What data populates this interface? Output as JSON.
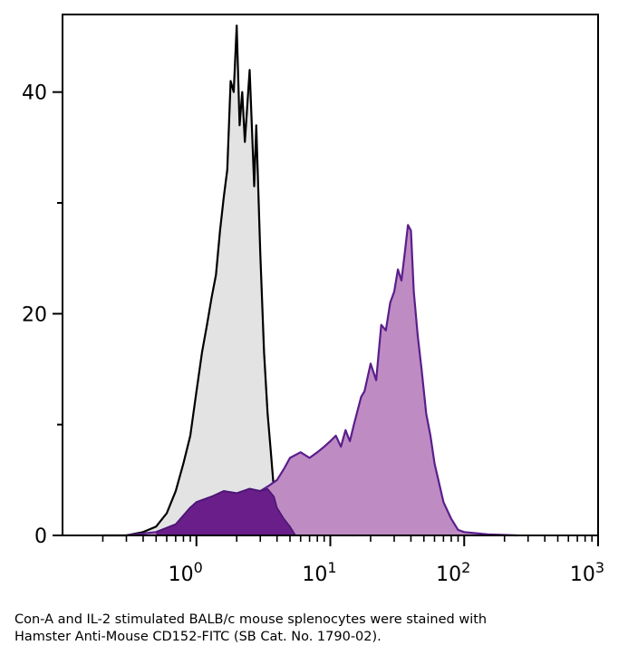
{
  "chart_data": {
    "type": "area",
    "xscale": "log",
    "xlim": [
      0.1,
      1000
    ],
    "ylim": [
      0,
      47
    ],
    "x_ticks": [
      {
        "value": 1,
        "base": "10",
        "exp": "0"
      },
      {
        "value": 10,
        "base": "10",
        "exp": "1"
      },
      {
        "value": 100,
        "base": "10",
        "exp": "2"
      },
      {
        "value": 1000,
        "base": "10",
        "exp": "3"
      }
    ],
    "y_ticks": [
      {
        "value": 0,
        "label": "0"
      },
      {
        "value": 20,
        "label": "20"
      },
      {
        "value": 40,
        "label": "40"
      }
    ],
    "y_minor_ticks": [
      10,
      30
    ],
    "grid": false,
    "series": [
      {
        "role": "isotype-control",
        "fill": "#e3e3e3",
        "stroke": "#000000",
        "x": [
          0.2,
          0.3,
          0.4,
          0.5,
          0.6,
          0.7,
          0.8,
          0.9,
          1.0,
          1.1,
          1.2,
          1.3,
          1.4,
          1.5,
          1.6,
          1.7,
          1.8,
          1.9,
          2.0,
          2.1,
          2.2,
          2.3,
          2.5,
          2.7,
          2.8,
          3.0,
          3.2,
          3.4,
          3.6,
          3.8,
          4.0,
          4.3,
          5.0,
          6.0,
          8.0,
          10.0,
          15.0
        ],
        "y": [
          0,
          0,
          0.3,
          0.8,
          2.0,
          4.0,
          6.5,
          9.0,
          13.0,
          16.5,
          19.0,
          21.5,
          23.5,
          27.5,
          30.5,
          33.0,
          41.0,
          40.0,
          46.0,
          37.0,
          40.0,
          35.5,
          42.0,
          31.5,
          37.0,
          25.5,
          16.5,
          11.0,
          7.5,
          4.0,
          2.5,
          1.2,
          0.6,
          0.4,
          0.3,
          0.2,
          0
        ]
      },
      {
        "role": "CD152-FITC",
        "fill": "#be8cc3",
        "stroke": "#5a1e8c",
        "x": [
          0.3,
          0.5,
          0.7,
          0.9,
          1.0,
          1.3,
          1.6,
          2.0,
          2.5,
          3.0,
          3.5,
          4.0,
          4.5,
          5.0,
          6.0,
          7.0,
          8.0,
          9.0,
          10.0,
          11.0,
          12.0,
          13.0,
          14.0,
          15.0,
          17.0,
          18.0,
          20.0,
          22.0,
          24.0,
          26.0,
          28.0,
          30.0,
          32.0,
          34.0,
          36.0,
          38.0,
          40.0,
          42.0,
          45.0,
          48.0,
          52.0,
          56.0,
          60.0,
          70.0,
          80.0,
          90.0,
          100.0,
          150.0,
          250.0
        ],
        "y": [
          0,
          0.3,
          1.0,
          2.5,
          3.0,
          3.5,
          4.0,
          3.8,
          4.2,
          4.0,
          4.5,
          5.0,
          6.0,
          7.0,
          7.5,
          7.0,
          7.5,
          8.0,
          8.5,
          9.0,
          8.0,
          9.5,
          8.5,
          10.0,
          12.5,
          13.0,
          15.5,
          14.0,
          19.0,
          18.5,
          21.0,
          22.0,
          24.0,
          23.0,
          25.5,
          28.0,
          27.5,
          22.0,
          18.0,
          15.0,
          11.0,
          9.0,
          6.5,
          3.0,
          1.5,
          0.5,
          0.3,
          0.1,
          0
        ]
      },
      {
        "role": "overlap",
        "fill": "#6a1e8a",
        "stroke": "#4a1570",
        "x": [
          0.5,
          0.7,
          0.9,
          1.0,
          1.3,
          1.6,
          2.0,
          2.5,
          3.0,
          3.4,
          3.8,
          4.0,
          4.5,
          5.0,
          5.5
        ],
        "y": [
          0.3,
          1.0,
          2.5,
          3.0,
          3.5,
          4.0,
          3.8,
          4.2,
          4.0,
          4.2,
          3.5,
          2.5,
          1.5,
          0.8,
          0
        ]
      }
    ]
  },
  "caption": {
    "line1": "Con-A and IL-2 stimulated BALB/c mouse splenocytes were stained with",
    "line2": "Hamster Anti-Mouse CD152-FITC (SB Cat. No. 1790-02)."
  }
}
